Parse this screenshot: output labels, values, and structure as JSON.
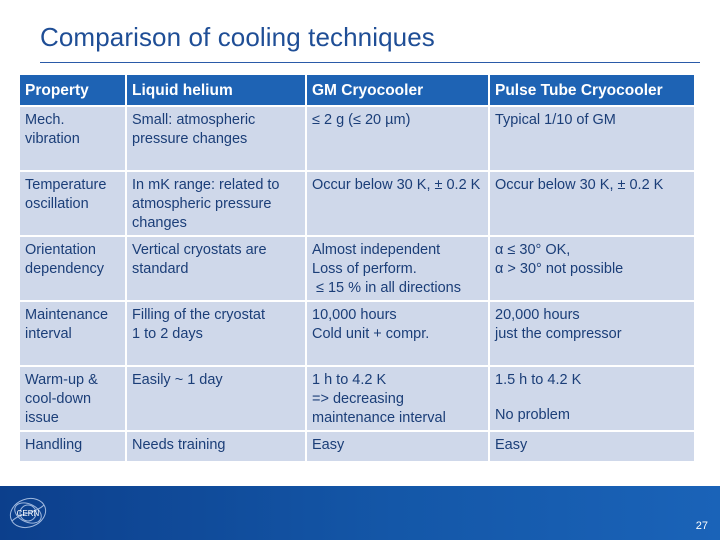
{
  "slide": {
    "title": "Comparison of cooling techniques",
    "page_number": "27",
    "logo_text": "CERN"
  },
  "table": {
    "headers": [
      "Property",
      "Liquid helium",
      "GM Cryocooler",
      "Pulse Tube Cryocooler"
    ],
    "rows": [
      {
        "property": "Mech. vibration",
        "liquid_helium": "Small: atmospheric pressure changes",
        "gm": "≤ 2 g  (≤ 20 µm)",
        "pulse_tube": "Typical 1/10 of GM"
      },
      {
        "property": "Temperature oscillation",
        "liquid_helium": "In mK range: related to atmospheric pressure changes",
        "gm": "Occur below 30 K, ± 0.2 K",
        "pulse_tube": "Occur below 30 K, ± 0.2 K"
      },
      {
        "property": "Orientation dependency",
        "liquid_helium": "Vertical cryostats are standard",
        "gm_line1": "Almost independent",
        "gm_line2": "Loss of perform.",
        "gm_line3": "≤ 15 % in all directions",
        "pulse_tube_line1": "α ≤ 30° OK,",
        "pulse_tube_line2": "α > 30° not possible"
      },
      {
        "property": "Maintenance interval",
        "liquid_helium_line1": "Filling of the cryostat",
        "liquid_helium_line2": "1 to 2 days",
        "gm_line1": "10,000 hours",
        "gm_line2": "Cold unit + compr.",
        "pulse_tube_line1": "20,000 hours",
        "pulse_tube_line2": "just the compressor"
      },
      {
        "property": "Warm-up & cool-down issue",
        "liquid_helium": "Easily ~ 1 day",
        "gm_line1": "1 h to 4.2 K",
        "gm_line2": "=> decreasing maintenance interval",
        "pulse_tube_line1": "1.5 h to 4.2 K",
        "pulse_tube_line2": "No problem"
      },
      {
        "property": "Handling",
        "liquid_helium": "Needs training",
        "gm": "Easy",
        "pulse_tube": "Easy"
      }
    ]
  },
  "colors": {
    "title": "#1f4e96",
    "header_bg": "#1e63b4",
    "cell_bg": "#cfd8ea",
    "cell_text": "#1b3e78",
    "footer_bg": "#1457a8"
  }
}
